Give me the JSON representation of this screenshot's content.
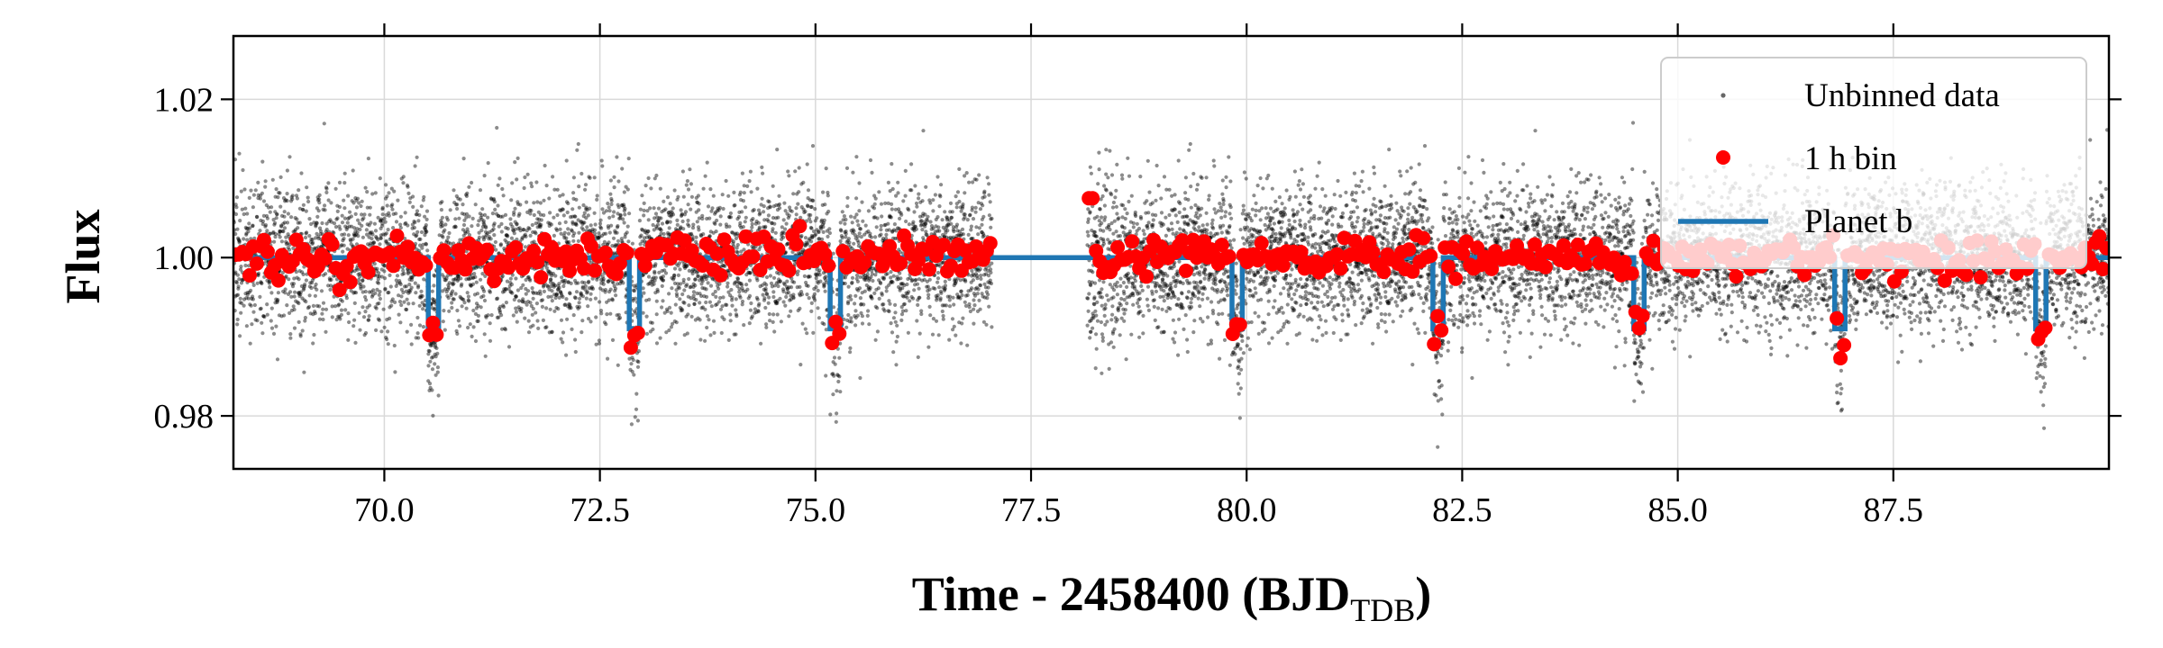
{
  "chart_data": {
    "type": "scatter",
    "ylabel": "Flux",
    "xlabel": {
      "main": "Time - 2458400 (BJD",
      "subscript": "TDB",
      "close": ")"
    },
    "xlim": [
      68.25,
      90.0
    ],
    "ylim": [
      0.9733,
      1.028
    ],
    "x_ticks": [
      70.0,
      72.5,
      75.0,
      77.5,
      80.0,
      82.5,
      85.0,
      87.5
    ],
    "x_tick_labels": [
      "70.0",
      "72.5",
      "75.0",
      "77.5",
      "80.0",
      "82.5",
      "85.0",
      "87.5"
    ],
    "y_ticks": [
      0.98,
      1.0,
      1.02
    ],
    "y_tick_labels": [
      "0.98",
      "1.00",
      "1.02"
    ],
    "grid": true,
    "legend_position": "top-right",
    "series": [
      {
        "name": "Unbinned data",
        "kind": "points",
        "color": "#000000",
        "scatter_sigma": 0.0045,
        "segments": [
          [
            68.25,
            77.05
          ],
          [
            78.15,
            90.0
          ]
        ]
      },
      {
        "name": "1 h bin",
        "kind": "points",
        "color": "#ff0000",
        "scatter_sigma": 0.0012,
        "bin_width_days": 0.0417,
        "segments": [
          [
            68.25,
            77.05
          ],
          [
            78.15,
            90.0
          ]
        ]
      },
      {
        "name": "Planet b",
        "kind": "line",
        "color": "#1f77b4",
        "baseline": 1.0,
        "transit_depth": 0.009,
        "transit_duration_days": 0.12,
        "transit_times": [
          70.57,
          72.9,
          75.23,
          79.89,
          82.22,
          84.55,
          86.88,
          89.21
        ]
      }
    ]
  }
}
